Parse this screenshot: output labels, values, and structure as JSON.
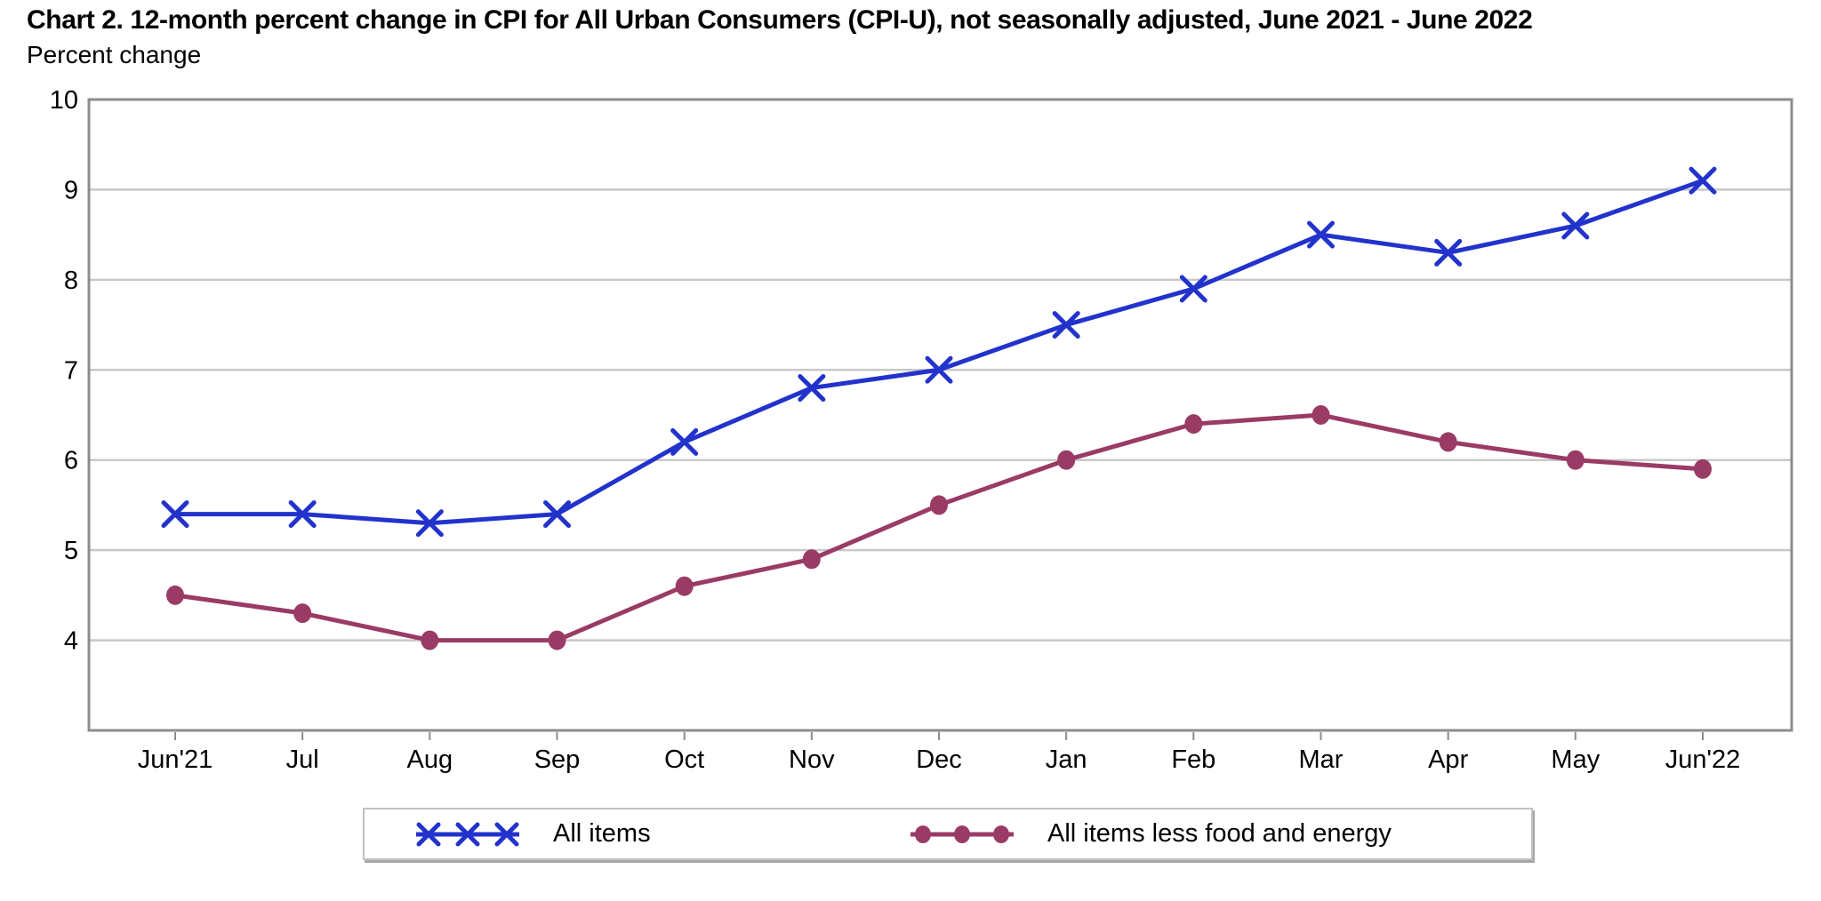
{
  "header": {
    "title": "Chart 2. 12-month percent change in CPI for All Urban Consumers (CPI-U), not seasonally adjusted, June 2021 - June 2022",
    "y_axis_label": "Percent change"
  },
  "legend": {
    "items": [
      {
        "label": "All items"
      },
      {
        "label": "All items less food and energy"
      }
    ]
  },
  "chart_data": {
    "type": "line",
    "title": "Chart 2. 12-month percent change in CPI for All Urban Consumers (CPI-U), not seasonally adjusted, June 2021 - June 2022",
    "ylabel": "Percent change",
    "xlabel": "",
    "categories": [
      "Jun'21",
      "Jul",
      "Aug",
      "Sep",
      "Oct",
      "Nov",
      "Dec",
      "Jan",
      "Feb",
      "Mar",
      "Apr",
      "May",
      "Jun'22"
    ],
    "series": [
      {
        "name": "All items",
        "marker": "x",
        "color": "#2233CC",
        "values": [
          5.4,
          5.4,
          5.3,
          5.4,
          6.2,
          6.8,
          7.0,
          7.5,
          7.9,
          8.5,
          8.3,
          8.6,
          9.1
        ]
      },
      {
        "name": "All items less food and energy",
        "marker": "circle",
        "color": "#9A3B66",
        "values": [
          4.5,
          4.3,
          4.0,
          4.0,
          4.6,
          4.9,
          5.5,
          6.0,
          6.4,
          6.5,
          6.2,
          6.0,
          5.9
        ]
      }
    ],
    "ylim": [
      3,
      10
    ],
    "yticks": [
      10,
      9,
      8,
      7,
      6,
      5,
      4
    ],
    "grid": "horizontal",
    "legend_position": "bottom",
    "frame_color": "#8c8c8c",
    "gridline_color": "#c8c8c8"
  }
}
